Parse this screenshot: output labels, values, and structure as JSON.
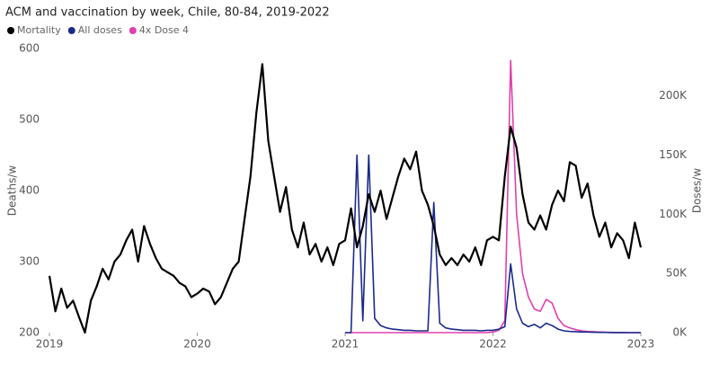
{
  "chart_data": {
    "type": "line",
    "title": "ACM and vaccination by week, Chile, 80-84, 2019-2022",
    "ylabel": "Deaths/w",
    "y2label": "Doses/w",
    "xlim": [
      2019,
      2023
    ],
    "xticks": [
      2019,
      2020,
      2021,
      2022,
      2023
    ],
    "ylim": [
      200,
      600
    ],
    "yticks": [
      200,
      300,
      400,
      500,
      600
    ],
    "y2lim": [
      0,
      240000
    ],
    "y2ticks": [
      {
        "value": 0,
        "label": "0K"
      },
      {
        "value": 50000,
        "label": "50K"
      },
      {
        "value": 100000,
        "label": "100K"
      },
      {
        "value": 150000,
        "label": "150K"
      },
      {
        "value": 200000,
        "label": "200K"
      }
    ],
    "grid": false,
    "x": [
      2019.0,
      2019.04,
      2019.08,
      2019.12,
      2019.16,
      2019.2,
      2019.24,
      2019.28,
      2019.32,
      2019.36,
      2019.4,
      2019.44,
      2019.48,
      2019.52,
      2019.56,
      2019.6,
      2019.64,
      2019.68,
      2019.72,
      2019.76,
      2019.8,
      2019.84,
      2019.88,
      2019.92,
      2019.96,
      2020.0,
      2020.04,
      2020.08,
      2020.12,
      2020.16,
      2020.2,
      2020.24,
      2020.28,
      2020.32,
      2020.36,
      2020.4,
      2020.44,
      2020.48,
      2020.52,
      2020.56,
      2020.6,
      2020.64,
      2020.68,
      2020.72,
      2020.76,
      2020.8,
      2020.84,
      2020.88,
      2020.92,
      2020.96,
      2021.0,
      2021.04,
      2021.08,
      2021.12,
      2021.16,
      2021.2,
      2021.24,
      2021.28,
      2021.32,
      2021.36,
      2021.4,
      2021.44,
      2021.48,
      2021.52,
      2021.56,
      2021.6,
      2021.64,
      2021.68,
      2021.72,
      2021.76,
      2021.8,
      2021.84,
      2021.88,
      2021.92,
      2021.96,
      2022.0,
      2022.04,
      2022.08,
      2022.12,
      2022.16,
      2022.2,
      2022.24,
      2022.28,
      2022.32,
      2022.36,
      2022.4,
      2022.44,
      2022.48,
      2022.52,
      2022.56,
      2022.6,
      2022.64,
      2022.68,
      2022.72,
      2022.76,
      2022.8,
      2022.84,
      2022.88,
      2022.92,
      2022.96,
      2023.0
    ],
    "series": [
      {
        "name": "Mortality",
        "color": "#000000",
        "axis": "y",
        "values": [
          280,
          230,
          262,
          235,
          245,
          222,
          200,
          245,
          265,
          290,
          275,
          300,
          310,
          330,
          345,
          300,
          350,
          325,
          305,
          290,
          285,
          280,
          270,
          265,
          250,
          255,
          262,
          258,
          240,
          250,
          270,
          290,
          300,
          360,
          420,
          510,
          578,
          470,
          420,
          370,
          405,
          345,
          320,
          355,
          310,
          325,
          300,
          320,
          295,
          325,
          330,
          375,
          320,
          350,
          395,
          370,
          400,
          360,
          390,
          420,
          445,
          430,
          455,
          400,
          380,
          350,
          310,
          295,
          305,
          295,
          310,
          300,
          320,
          295,
          330,
          335,
          330,
          420,
          490,
          460,
          395,
          355,
          345,
          365,
          345,
          380,
          400,
          385,
          440,
          435,
          390,
          410,
          365,
          335,
          355,
          320,
          340,
          330,
          305,
          355,
          320
        ]
      },
      {
        "name": "All doses",
        "color": "#1a2a8c",
        "axis": "y2",
        "values": [
          null,
          null,
          null,
          null,
          null,
          null,
          null,
          null,
          null,
          null,
          null,
          null,
          null,
          null,
          null,
          null,
          null,
          null,
          null,
          null,
          null,
          null,
          null,
          null,
          null,
          null,
          null,
          null,
          null,
          null,
          null,
          null,
          null,
          null,
          null,
          null,
          null,
          null,
          null,
          null,
          null,
          null,
          null,
          null,
          null,
          null,
          null,
          null,
          null,
          null,
          0,
          0,
          150000,
          10000,
          150000,
          12000,
          6000,
          4000,
          3000,
          2500,
          2000,
          2000,
          1500,
          1500,
          1500,
          110000,
          8000,
          4000,
          3000,
          2500,
          2000,
          2000,
          2000,
          1500,
          2000,
          2000,
          3000,
          5000,
          58000,
          20000,
          8000,
          5000,
          7000,
          4000,
          8000,
          6000,
          3000,
          1500,
          1000,
          800,
          500,
          500,
          300,
          200,
          200,
          100,
          100,
          100,
          0,
          0,
          0
        ]
      },
      {
        "name": "4x Dose 4",
        "color": "#e040b0",
        "axis": "y2",
        "values": [
          null,
          null,
          null,
          null,
          null,
          null,
          null,
          null,
          null,
          null,
          null,
          null,
          null,
          null,
          null,
          null,
          null,
          null,
          null,
          null,
          null,
          null,
          null,
          null,
          null,
          null,
          null,
          null,
          null,
          null,
          null,
          null,
          null,
          null,
          null,
          null,
          null,
          null,
          null,
          null,
          null,
          null,
          null,
          null,
          null,
          null,
          null,
          null,
          null,
          null,
          0,
          0,
          0,
          0,
          0,
          0,
          0,
          0,
          0,
          0,
          0,
          0,
          0,
          0,
          0,
          0,
          0,
          0,
          0,
          0,
          0,
          0,
          0,
          0,
          0,
          500,
          2000,
          10000,
          230000,
          100000,
          50000,
          30000,
          20000,
          18000,
          28000,
          25000,
          12000,
          6000,
          4000,
          2500,
          1500,
          1000,
          800,
          500,
          300,
          200,
          100,
          100,
          0,
          0,
          0
        ]
      }
    ]
  }
}
